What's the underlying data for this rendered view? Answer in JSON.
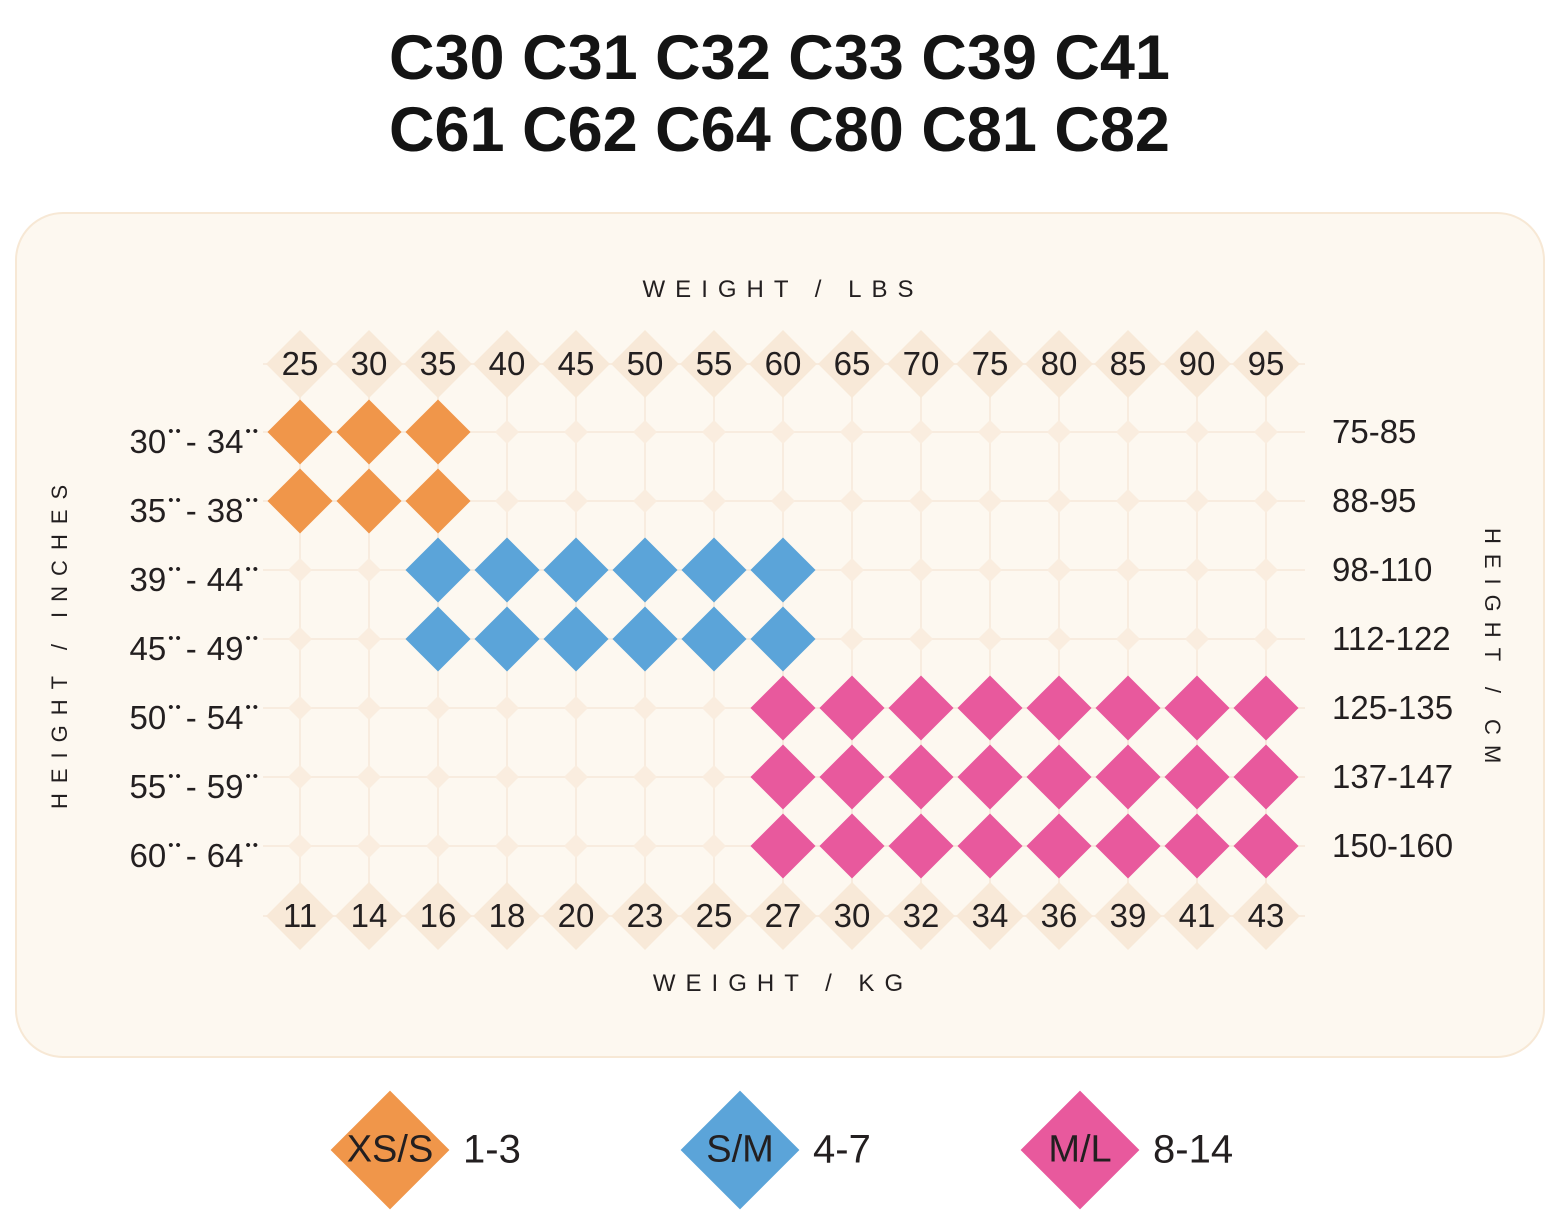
{
  "title": {
    "line1": "C30 C31 C32 C33 C39 C41",
    "line2": "C61 C62 C64 C80 C81 C82"
  },
  "chart_data": {
    "type": "heatmap",
    "title": "C30 C31 C32 C33 C39 C41 C61 C62 C64 C80 C81 C82",
    "x_top": {
      "label": "WEIGHT / LBS",
      "ticks": [
        "25",
        "30",
        "35",
        "40",
        "45",
        "50",
        "55",
        "60",
        "65",
        "70",
        "75",
        "80",
        "85",
        "90",
        "95"
      ]
    },
    "x_bottom": {
      "label": "WEIGHT / KG",
      "ticks": [
        "11",
        "14",
        "16",
        "18",
        "20",
        "23",
        "25",
        "27",
        "30",
        "32",
        "34",
        "36",
        "39",
        "41",
        "43"
      ]
    },
    "y_left": {
      "label": "HEIGHT / INCHES",
      "unit_mark": "••",
      "ticks": [
        {
          "from": "30",
          "to": "34"
        },
        {
          "from": "35",
          "to": "38"
        },
        {
          "from": "39",
          "to": "44"
        },
        {
          "from": "45",
          "to": "49"
        },
        {
          "from": "50",
          "to": "54"
        },
        {
          "from": "55",
          "to": "59"
        },
        {
          "from": "60",
          "to": "64"
        }
      ]
    },
    "y_right": {
      "label": "HEIGHT / CM",
      "ticks": [
        "75-85",
        "88-95",
        "98-110",
        "112-122",
        "125-135",
        "137-147",
        "150-160"
      ]
    },
    "cells": [
      [
        "xs",
        "xs",
        "xs",
        "",
        "",
        "",
        "",
        "",
        "",
        "",
        "",
        "",
        "",
        "",
        ""
      ],
      [
        "xs",
        "xs",
        "xs",
        "",
        "",
        "",
        "",
        "",
        "",
        "",
        "",
        "",
        "",
        "",
        ""
      ],
      [
        "",
        "",
        "sm",
        "sm",
        "sm",
        "sm",
        "sm",
        "sm",
        "",
        "",
        "",
        "",
        "",
        "",
        ""
      ],
      [
        "",
        "",
        "sm",
        "sm",
        "sm",
        "sm",
        "sm",
        "sm",
        "",
        "",
        "",
        "",
        "",
        "",
        ""
      ],
      [
        "",
        "",
        "",
        "",
        "",
        "",
        "",
        "ml",
        "ml",
        "ml",
        "ml",
        "ml",
        "ml",
        "ml",
        "ml"
      ],
      [
        "",
        "",
        "",
        "",
        "",
        "",
        "",
        "ml",
        "ml",
        "ml",
        "ml",
        "ml",
        "ml",
        "ml",
        "ml"
      ],
      [
        "",
        "",
        "",
        "",
        "",
        "",
        "",
        "ml",
        "ml",
        "ml",
        "ml",
        "ml",
        "ml",
        "ml",
        "ml"
      ]
    ],
    "series_legend": [
      {
        "key": "xs",
        "label": "XS/S",
        "range": "1-3",
        "color": "#F0964A"
      },
      {
        "key": "sm",
        "label": "S/M",
        "range": "4-7",
        "color": "#5BA4D9"
      },
      {
        "key": "ml",
        "label": "M/L",
        "range": "8-14",
        "color": "#E8599D"
      }
    ]
  },
  "colors": {
    "xs": "#F0964A",
    "sm": "#5BA4D9",
    "ml": "#E8599D",
    "faint_diamond": "#FAEDDF",
    "label_diamond": "#F8E9D8",
    "line": "#F8ECDF",
    "panel_bg": "#FDF8F0",
    "panel_border": "#F7E8D5",
    "text": "#231F20",
    "title_text": "#141414"
  }
}
